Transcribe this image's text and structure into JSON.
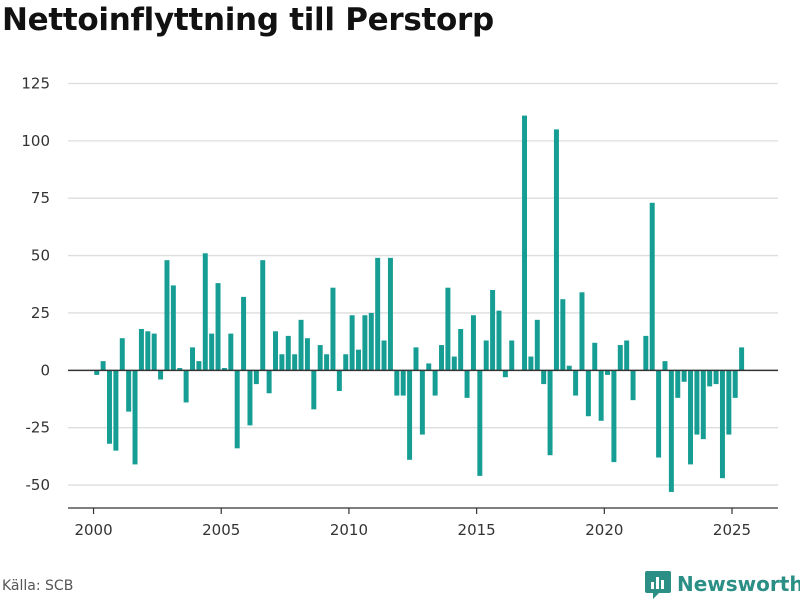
{
  "title": "Nettoinflyttning till Perstorp",
  "source": "Källa: SCB",
  "brand": {
    "name": "Newsworthy",
    "icon": "bar-chart-logo-icon"
  },
  "colors": {
    "bar": "#169e95",
    "grid": "#dddddd",
    "zero_line": "#333333",
    "axis": "#333333",
    "brand": "#2b8f86"
  },
  "chart_data": {
    "type": "bar",
    "title": "Nettoinflyttning till Perstorp",
    "xlabel": "",
    "ylabel": "",
    "ylim": [
      -60,
      130
    ],
    "xlim": [
      1999.0,
      2026.8
    ],
    "yticks": [
      125,
      100,
      75,
      50,
      25,
      0,
      -25,
      -50
    ],
    "xticks": [
      2000,
      2005,
      2010,
      2015,
      2020,
      2025
    ],
    "grid": true,
    "granularity": "quarter",
    "start": "2000-Q1",
    "values": [
      -2,
      4,
      -32,
      -35,
      14,
      -18,
      -41,
      18,
      17,
      16,
      -4,
      48,
      37,
      1,
      -14,
      10,
      4,
      51,
      16,
      38,
      1,
      16,
      -34,
      32,
      -24,
      -6,
      48,
      -10,
      17,
      7,
      15,
      7,
      22,
      14,
      -17,
      11,
      7,
      36,
      -9,
      7,
      24,
      9,
      24,
      25,
      49,
      13,
      49,
      -11,
      -11,
      -39,
      10,
      -28,
      3,
      -11,
      11,
      36,
      6,
      18,
      -12,
      24,
      -46,
      13,
      35,
      26,
      -3,
      13,
      0,
      111,
      6,
      22,
      -6,
      -37,
      105,
      31,
      2,
      -11,
      34,
      -20,
      12,
      -22,
      -2,
      -40,
      11,
      13,
      -13,
      0,
      15,
      73,
      -38,
      4,
      -53,
      -12,
      -5,
      -41,
      -28,
      -30,
      -7,
      -6,
      -47,
      -28,
      -12,
      10
    ]
  }
}
